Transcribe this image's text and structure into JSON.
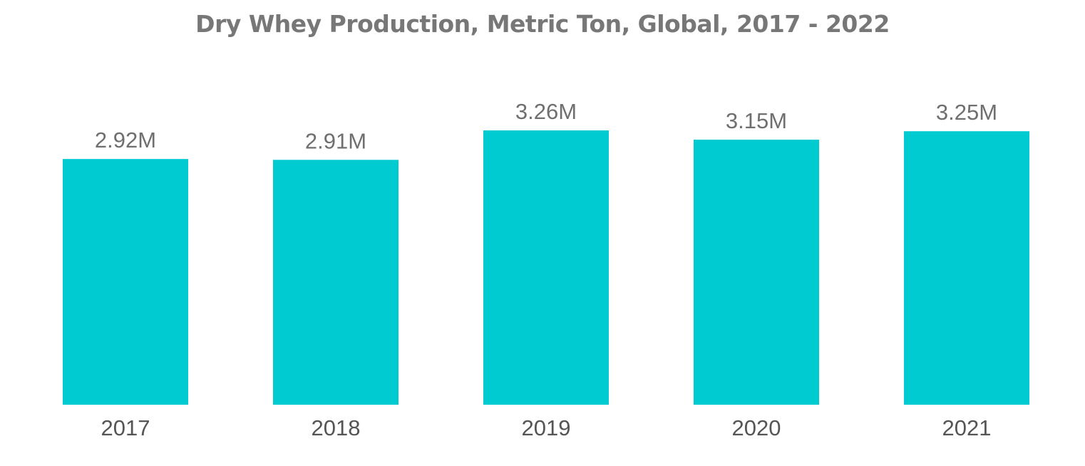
{
  "chart_data": {
    "type": "bar",
    "title": "Dry Whey Production, Metric Ton, Global, 2017 - 2022",
    "categories": [
      "2017",
      "2018",
      "2019",
      "2020",
      "2021"
    ],
    "values": [
      2920000,
      2910000,
      3260000,
      3150000,
      3250000
    ],
    "data_labels": [
      "2.92M",
      "2.91M",
      "3.26M",
      "3.15M",
      "3.25M"
    ],
    "xlabel": "",
    "ylabel": "",
    "ylim": [
      0,
      3260000
    ],
    "grid": false,
    "legend": "none",
    "colors": {
      "bar": "#00cbd1",
      "title": "#777777",
      "data_label": "#6f6f6f",
      "tick_label": "#555555"
    }
  }
}
